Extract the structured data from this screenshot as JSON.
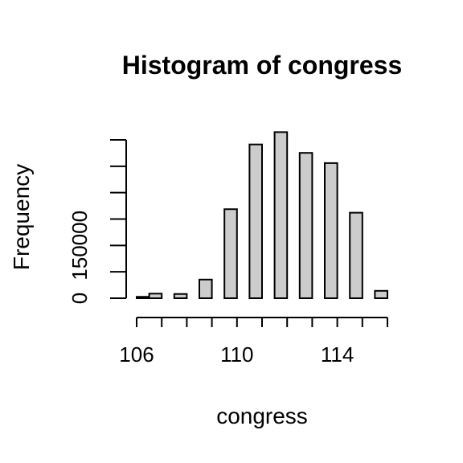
{
  "chart_data": {
    "type": "bar",
    "title": "Histogram of congress",
    "xlabel": "congress",
    "ylabel": "Frequency",
    "xlim": [
      106,
      116
    ],
    "ylim": [
      0,
      450000
    ],
    "bin_width": 0.5,
    "bins": [
      {
        "start": 106.0,
        "end": 106.5,
        "count": 4000
      },
      {
        "start": 106.5,
        "end": 107.0,
        "count": 13000
      },
      {
        "start": 107.5,
        "end": 108.0,
        "count": 12000
      },
      {
        "start": 108.5,
        "end": 109.0,
        "count": 53000
      },
      {
        "start": 109.5,
        "end": 110.0,
        "count": 253000
      },
      {
        "start": 110.5,
        "end": 111.0,
        "count": 437000
      },
      {
        "start": 111.5,
        "end": 112.0,
        "count": 472000
      },
      {
        "start": 112.5,
        "end": 113.0,
        "count": 413000
      },
      {
        "start": 113.5,
        "end": 114.0,
        "count": 384000
      },
      {
        "start": 114.5,
        "end": 115.0,
        "count": 243000
      },
      {
        "start": 115.5,
        "end": 116.0,
        "count": 21000
      }
    ],
    "x_ticks": [
      106,
      107,
      108,
      109,
      110,
      111,
      112,
      113,
      114,
      115,
      116
    ],
    "x_tick_labels": [
      {
        "value": 106,
        "label": "106"
      },
      {
        "value": 110,
        "label": "110"
      },
      {
        "value": 114,
        "label": "114"
      }
    ],
    "y_ticks": [
      0,
      75000,
      150000,
      225000,
      300000,
      375000,
      450000
    ],
    "y_tick_labels": [
      {
        "value": 0,
        "label": "0"
      },
      {
        "value": 150000,
        "label": "150000"
      }
    ],
    "grid": false,
    "bar_color": "#cccccc",
    "edge_color": "#000000"
  }
}
